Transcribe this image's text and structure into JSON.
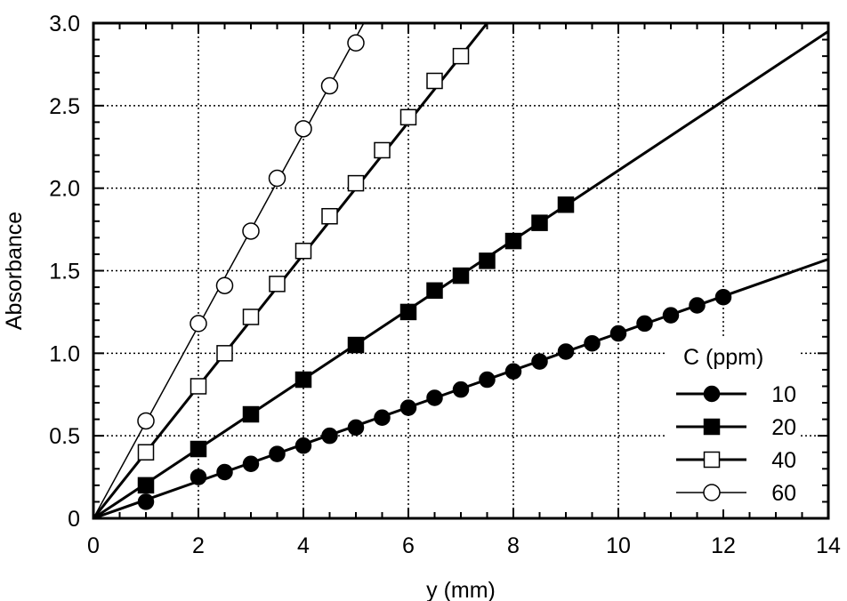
{
  "chart_data": {
    "type": "line",
    "title": "",
    "xlabel": "y (mm)",
    "ylabel": "Absorbance",
    "xlim": [
      0,
      14
    ],
    "ylim": [
      0,
      3.0
    ],
    "xticks": [
      0,
      2,
      4,
      6,
      8,
      10,
      12,
      14
    ],
    "xtick_labels": [
      "0",
      "2",
      "4",
      "6",
      "8",
      "10",
      "12",
      "14"
    ],
    "yticks": [
      0,
      0.5,
      1.0,
      1.5,
      2.0,
      2.5,
      3.0
    ],
    "ytick_labels": [
      "0",
      "0.5",
      "1.0",
      "1.5",
      "2.0",
      "2.5",
      "3.0"
    ],
    "grid": true,
    "legend": {
      "title": "C (ppm)",
      "position": "lower right"
    },
    "series": [
      {
        "name": "10",
        "marker": "filled-circle",
        "fit_line_end": [
          14,
          1.57
        ],
        "x": [
          1,
          2,
          2.5,
          3,
          3.5,
          4,
          4.5,
          5,
          5.5,
          6,
          6.5,
          7,
          7.5,
          8,
          8.5,
          9,
          9.5,
          10,
          10.5,
          11,
          11.5,
          12
        ],
        "values": [
          0.1,
          0.25,
          0.28,
          0.33,
          0.39,
          0.44,
          0.5,
          0.55,
          0.61,
          0.67,
          0.73,
          0.78,
          0.84,
          0.89,
          0.95,
          1.01,
          1.06,
          1.12,
          1.18,
          1.23,
          1.29,
          1.34
        ]
      },
      {
        "name": "20",
        "marker": "filled-square",
        "fit_line_end": [
          14,
          2.95
        ],
        "x": [
          1,
          2,
          3,
          4,
          5,
          6,
          6.5,
          7,
          7.5,
          8,
          8.5,
          9
        ],
        "values": [
          0.2,
          0.42,
          0.63,
          0.84,
          1.05,
          1.25,
          1.38,
          1.47,
          1.56,
          1.68,
          1.79,
          1.9
        ]
      },
      {
        "name": "40",
        "marker": "open-square",
        "fit_line_end": [
          7.5,
          3.0
        ],
        "x": [
          1,
          2,
          2.5,
          3,
          3.5,
          4,
          4.5,
          5,
          5.5,
          6,
          6.5,
          7
        ],
        "values": [
          0.4,
          0.8,
          1.0,
          1.22,
          1.42,
          1.62,
          1.83,
          2.03,
          2.23,
          2.43,
          2.65,
          2.8
        ]
      },
      {
        "name": "60",
        "marker": "open-circle",
        "fit_line_end": [
          5.15,
          3.0
        ],
        "x": [
          1,
          2,
          2.5,
          3,
          3.5,
          4,
          4.5,
          5
        ],
        "values": [
          0.59,
          1.18,
          1.41,
          1.74,
          2.06,
          2.36,
          2.62,
          2.88
        ]
      }
    ]
  },
  "colors": {
    "ink": "#000000",
    "background": "#ffffff"
  }
}
